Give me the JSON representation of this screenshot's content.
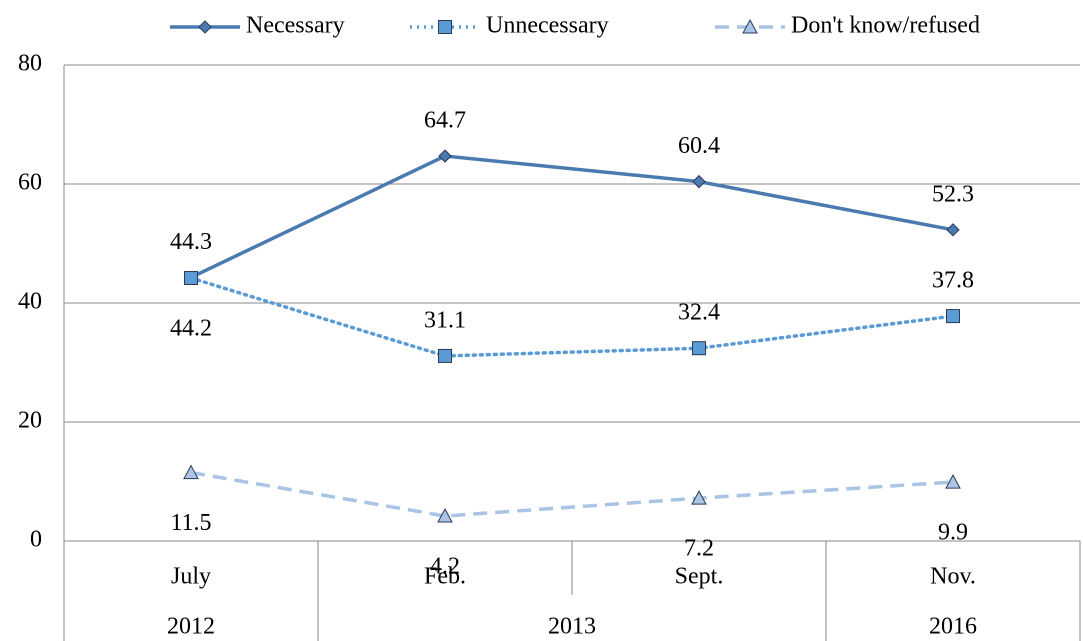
{
  "chart_data": {
    "type": "line",
    "categories": [
      "July",
      "Feb.",
      "Sept.",
      "Nov."
    ],
    "category_groups": [
      {
        "label": "2012",
        "count": 1
      },
      {
        "label": "2013",
        "count": 2
      },
      {
        "label": "2016",
        "count": 1
      }
    ],
    "series": [
      {
        "name": "Necessary",
        "color": "#4a7ab0",
        "style": "solid",
        "marker": "diamond",
        "values": [
          44.3,
          64.7,
          60.4,
          52.3
        ]
      },
      {
        "name": "Unnecessary",
        "color": "#5b9bd5",
        "style": "dotted",
        "marker": "square",
        "values": [
          44.2,
          31.1,
          32.4,
          37.8
        ]
      },
      {
        "name": "Don't know/refused",
        "color": "#a9c4e4",
        "style": "dashed",
        "marker": "triangle",
        "values": [
          11.5,
          4.2,
          7.2,
          9.9
        ]
      }
    ],
    "ylim": [
      0,
      80
    ],
    "yticks": [
      0,
      20,
      40,
      60,
      80
    ],
    "grid": true,
    "legend": "top"
  }
}
